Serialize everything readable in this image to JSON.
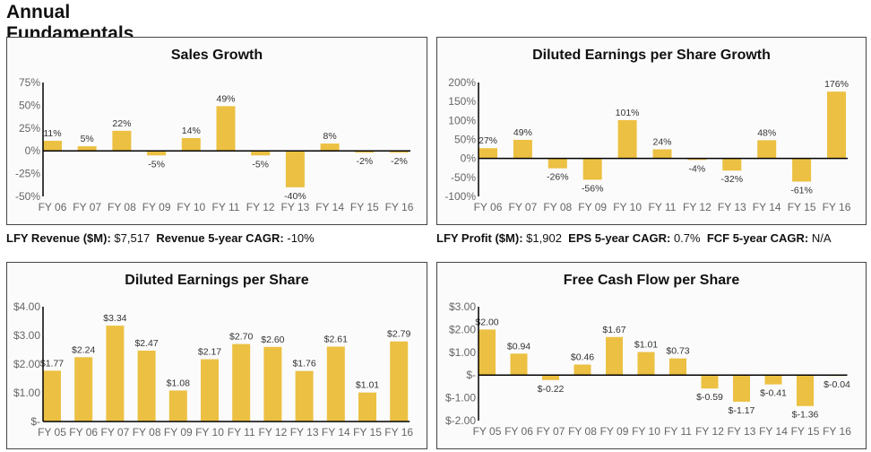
{
  "page_title": "Annual Fundamentals",
  "colors": {
    "bar": "#ecc042",
    "axis": "#000000"
  },
  "stats_left": {
    "revenue_label": "LFY Revenue ($M):",
    "revenue_value": "$7,517",
    "cagr_label": "Revenue 5-year CAGR:",
    "cagr_value": "-10%"
  },
  "stats_right": {
    "profit_label": "LFY Profit ($M):",
    "profit_value": "$1,902",
    "eps_cagr_label": "EPS 5-year CAGR:",
    "eps_cagr_value": "0.7%",
    "fcf_cagr_label": "FCF 5-year CAGR:",
    "fcf_cagr_value": "N/A"
  },
  "chart_data": [
    {
      "type": "bar",
      "title": "Sales Growth",
      "categories": [
        "FY 06",
        "FY 07",
        "FY 08",
        "FY 09",
        "FY 10",
        "FY 11",
        "FY 12",
        "FY 13",
        "FY 14",
        "FY 15",
        "FY 16"
      ],
      "values": [
        11,
        5,
        22,
        -5,
        14,
        49,
        -5,
        -40,
        8,
        -2,
        -2
      ],
      "value_labels": [
        "11%",
        "5%",
        "22%",
        "-5%",
        "14%",
        "49%",
        "-5%",
        "-40%",
        "8%",
        "-2%",
        "-2%"
      ],
      "ylim": [
        -50,
        75
      ],
      "yticks": [
        75,
        50,
        25,
        0,
        -25,
        -50
      ],
      "ytick_labels": [
        "75%",
        "50%",
        "25%",
        "0%",
        "-25%",
        "-50%"
      ],
      "grid": false,
      "unit": "%"
    },
    {
      "type": "bar",
      "title": "Diluted Earnings per Share Growth",
      "categories": [
        "FY 06",
        "FY 07",
        "FY 08",
        "FY 09",
        "FY 10",
        "FY 11",
        "FY 12",
        "FY 13",
        "FY 14",
        "FY 15",
        "FY 16"
      ],
      "values": [
        27,
        49,
        -26,
        -56,
        101,
        24,
        -4,
        -32,
        48,
        -61,
        176
      ],
      "value_labels": [
        "27%",
        "49%",
        "-26%",
        "-56%",
        "101%",
        "24%",
        "-4%",
        "-32%",
        "48%",
        "-61%",
        "176%"
      ],
      "ylim": [
        -100,
        200
      ],
      "yticks": [
        200,
        150,
        100,
        50,
        0,
        -50,
        -100
      ],
      "ytick_labels": [
        "200%",
        "150%",
        "100%",
        "50%",
        "0%",
        "-50%",
        "-100%"
      ],
      "grid": false,
      "unit": "%"
    },
    {
      "type": "bar",
      "title": "Diluted Earnings per Share",
      "categories": [
        "FY 05",
        "FY 06",
        "FY 07",
        "FY 08",
        "FY 09",
        "FY 10",
        "FY 11",
        "FY 12",
        "FY 13",
        "FY 14",
        "FY 15",
        "FY 16"
      ],
      "values": [
        1.77,
        2.24,
        3.34,
        2.47,
        1.08,
        2.17,
        2.7,
        2.6,
        1.76,
        2.61,
        1.01,
        2.79
      ],
      "value_labels": [
        "$1.77",
        "$2.24",
        "$3.34",
        "$2.47",
        "$1.08",
        "$2.17",
        "$2.70",
        "$2.60",
        "$1.76",
        "$2.61",
        "$1.01",
        "$2.79"
      ],
      "ylim": [
        0,
        4
      ],
      "yticks": [
        4,
        3,
        2,
        1,
        0
      ],
      "ytick_labels": [
        "$4.00",
        "$3.00",
        "$2.00",
        "$1.00",
        "$-"
      ],
      "grid": false,
      "unit": "$"
    },
    {
      "type": "bar",
      "title": "Free Cash Flow per Share",
      "categories": [
        "FY 05",
        "FY 06",
        "FY 07",
        "FY 08",
        "FY 09",
        "FY 10",
        "FY 11",
        "FY 12",
        "FY 13",
        "FY 14",
        "FY 15",
        "FY 16"
      ],
      "values": [
        2.0,
        0.94,
        -0.22,
        0.46,
        1.67,
        1.01,
        0.73,
        -0.59,
        -1.17,
        -0.41,
        -1.36,
        -0.04
      ],
      "value_labels": [
        "$2.00",
        "$0.94",
        "$-0.22",
        "$0.46",
        "$1.67",
        "$1.01",
        "$0.73",
        "$-0.59",
        "$-1.17",
        "$-0.41",
        "$-1.36",
        "$-0.04"
      ],
      "ylim": [
        -2,
        3
      ],
      "yticks": [
        3,
        2,
        1,
        0,
        -1,
        -2
      ],
      "ytick_labels": [
        "$3.00",
        "$2.00",
        "$1.00",
        "$-",
        "$-1.00",
        "$-2.00"
      ],
      "grid": false,
      "unit": "$"
    }
  ]
}
